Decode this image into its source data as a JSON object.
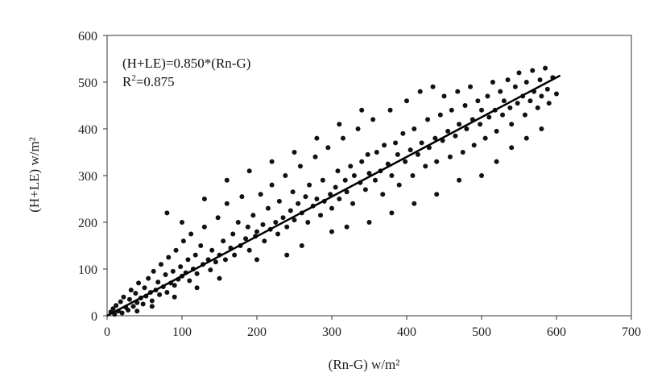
{
  "chart_data": {
    "type": "scatter",
    "title": "",
    "xlabel": "(Rn-G) w/m²",
    "ylabel": "(H+LE) w/m²",
    "xlim": [
      0,
      700
    ],
    "ylim": [
      0,
      600
    ],
    "xticks": [
      0,
      100,
      200,
      300,
      400,
      500,
      600,
      700
    ],
    "yticks": [
      0,
      100,
      200,
      300,
      400,
      500,
      600
    ],
    "grid": false,
    "legend": "none",
    "annotations": {
      "equation": "(H+LE)=0.850*(Rn-G)",
      "r2_prefix": "R",
      "r2_sup": "2",
      "r2_suffix": "=0.875"
    },
    "fit_line": {
      "slope": 0.85,
      "intercept": 0,
      "x_range": [
        0,
        605
      ]
    },
    "marker_color": "#111111",
    "series": [
      {
        "values": [
          [
            5,
            8
          ],
          [
            8,
            15
          ],
          [
            10,
            3
          ],
          [
            12,
            22
          ],
          [
            15,
            10
          ],
          [
            18,
            30
          ],
          [
            20,
            6
          ],
          [
            22,
            40
          ],
          [
            25,
            18
          ],
          [
            28,
            12
          ],
          [
            30,
            35
          ],
          [
            32,
            55
          ],
          [
            35,
            20
          ],
          [
            38,
            48
          ],
          [
            40,
            28
          ],
          [
            42,
            70
          ],
          [
            45,
            38
          ],
          [
            48,
            25
          ],
          [
            50,
            60
          ],
          [
            52,
            42
          ],
          [
            55,
            80
          ],
          [
            58,
            50
          ],
          [
            60,
            32
          ],
          [
            62,
            95
          ],
          [
            65,
            55
          ],
          [
            68,
            72
          ],
          [
            70,
            45
          ],
          [
            72,
            110
          ],
          [
            75,
            62
          ],
          [
            78,
            88
          ],
          [
            80,
            50
          ],
          [
            82,
            125
          ],
          [
            85,
            70
          ],
          [
            88,
            95
          ],
          [
            90,
            65
          ],
          [
            92,
            140
          ],
          [
            95,
            78
          ],
          [
            98,
            105
          ],
          [
            100,
            85
          ],
          [
            102,
            160
          ],
          [
            105,
            92
          ],
          [
            108,
            120
          ],
          [
            110,
            75
          ],
          [
            112,
            175
          ],
          [
            115,
            100
          ],
          [
            118,
            130
          ],
          [
            120,
            90
          ],
          [
            125,
            150
          ],
          [
            128,
            110
          ],
          [
            130,
            190
          ],
          [
            135,
            120
          ],
          [
            138,
            98
          ],
          [
            140,
            140
          ],
          [
            145,
            115
          ],
          [
            148,
            210
          ],
          [
            150,
            130
          ],
          [
            155,
            160
          ],
          [
            158,
            120
          ],
          [
            160,
            240
          ],
          [
            165,
            145
          ],
          [
            168,
            175
          ],
          [
            170,
            130
          ],
          [
            175,
            200
          ],
          [
            178,
            150
          ],
          [
            180,
            255
          ],
          [
            185,
            165
          ],
          [
            188,
            190
          ],
          [
            190,
            140
          ],
          [
            195,
            215
          ],
          [
            198,
            170
          ],
          [
            200,
            180
          ],
          [
            205,
            260
          ],
          [
            208,
            195
          ],
          [
            210,
            160
          ],
          [
            215,
            230
          ],
          [
            218,
            185
          ],
          [
            220,
            280
          ],
          [
            225,
            200
          ],
          [
            228,
            175
          ],
          [
            230,
            245
          ],
          [
            235,
            210
          ],
          [
            238,
            300
          ],
          [
            240,
            190
          ],
          [
            245,
            225
          ],
          [
            248,
            265
          ],
          [
            250,
            205
          ],
          [
            255,
            240
          ],
          [
            258,
            320
          ],
          [
            260,
            220
          ],
          [
            265,
            255
          ],
          [
            268,
            200
          ],
          [
            270,
            280
          ],
          [
            275,
            235
          ],
          [
            278,
            340
          ],
          [
            280,
            250
          ],
          [
            285,
            215
          ],
          [
            288,
            290
          ],
          [
            290,
            245
          ],
          [
            295,
            360
          ],
          [
            298,
            260
          ],
          [
            300,
            230
          ],
          [
            305,
            275
          ],
          [
            308,
            310
          ],
          [
            310,
            250
          ],
          [
            315,
            380
          ],
          [
            318,
            290
          ],
          [
            320,
            265
          ],
          [
            325,
            320
          ],
          [
            328,
            240
          ],
          [
            330,
            300
          ],
          [
            335,
            400
          ],
          [
            338,
            285
          ],
          [
            340,
            330
          ],
          [
            345,
            270
          ],
          [
            348,
            345
          ],
          [
            350,
            305
          ],
          [
            355,
            420
          ],
          [
            358,
            290
          ],
          [
            360,
            350
          ],
          [
            365,
            310
          ],
          [
            368,
            260
          ],
          [
            370,
            365
          ],
          [
            375,
            325
          ],
          [
            378,
            440
          ],
          [
            380,
            300
          ],
          [
            385,
            370
          ],
          [
            388,
            345
          ],
          [
            390,
            280
          ],
          [
            395,
            390
          ],
          [
            398,
            330
          ],
          [
            400,
            460
          ],
          [
            405,
            355
          ],
          [
            408,
            300
          ],
          [
            410,
            400
          ],
          [
            415,
            345
          ],
          [
            418,
            480
          ],
          [
            420,
            370
          ],
          [
            425,
            320
          ],
          [
            428,
            420
          ],
          [
            430,
            360
          ],
          [
            435,
            490
          ],
          [
            438,
            380
          ],
          [
            440,
            330
          ],
          [
            445,
            430
          ],
          [
            448,
            375
          ],
          [
            450,
            470
          ],
          [
            455,
            395
          ],
          [
            458,
            340
          ],
          [
            460,
            440
          ],
          [
            465,
            385
          ],
          [
            468,
            480
          ],
          [
            470,
            410
          ],
          [
            475,
            350
          ],
          [
            478,
            450
          ],
          [
            480,
            400
          ],
          [
            485,
            490
          ],
          [
            488,
            420
          ],
          [
            490,
            365
          ],
          [
            495,
            460
          ],
          [
            498,
            410
          ],
          [
            500,
            440
          ],
          [
            505,
            380
          ],
          [
            508,
            470
          ],
          [
            510,
            425
          ],
          [
            515,
            500
          ],
          [
            518,
            440
          ],
          [
            520,
            395
          ],
          [
            525,
            480
          ],
          [
            528,
            430
          ],
          [
            530,
            460
          ],
          [
            535,
            505
          ],
          [
            538,
            445
          ],
          [
            540,
            410
          ],
          [
            545,
            490
          ],
          [
            548,
            455
          ],
          [
            550,
            520
          ],
          [
            555,
            470
          ],
          [
            558,
            430
          ],
          [
            560,
            500
          ],
          [
            565,
            460
          ],
          [
            568,
            525
          ],
          [
            570,
            480
          ],
          [
            575,
            445
          ],
          [
            578,
            505
          ],
          [
            580,
            470
          ],
          [
            585,
            530
          ],
          [
            588,
            485
          ],
          [
            590,
            455
          ],
          [
            595,
            510
          ],
          [
            600,
            475
          ],
          [
            350,
            200
          ],
          [
            380,
            220
          ],
          [
            410,
            240
          ],
          [
            440,
            260
          ],
          [
            470,
            290
          ],
          [
            300,
            180
          ],
          [
            320,
            190
          ],
          [
            260,
            150
          ],
          [
            240,
            130
          ],
          [
            200,
            120
          ],
          [
            150,
            80
          ],
          [
            120,
            60
          ],
          [
            90,
            40
          ],
          [
            60,
            20
          ],
          [
            40,
            10
          ],
          [
            500,
            300
          ],
          [
            520,
            330
          ],
          [
            540,
            360
          ],
          [
            560,
            380
          ],
          [
            580,
            400
          ],
          [
            80,
            220
          ],
          [
            100,
            200
          ],
          [
            130,
            250
          ],
          [
            160,
            290
          ],
          [
            190,
            310
          ],
          [
            220,
            330
          ],
          [
            250,
            350
          ],
          [
            280,
            380
          ],
          [
            310,
            410
          ],
          [
            340,
            440
          ]
        ]
      }
    ]
  }
}
